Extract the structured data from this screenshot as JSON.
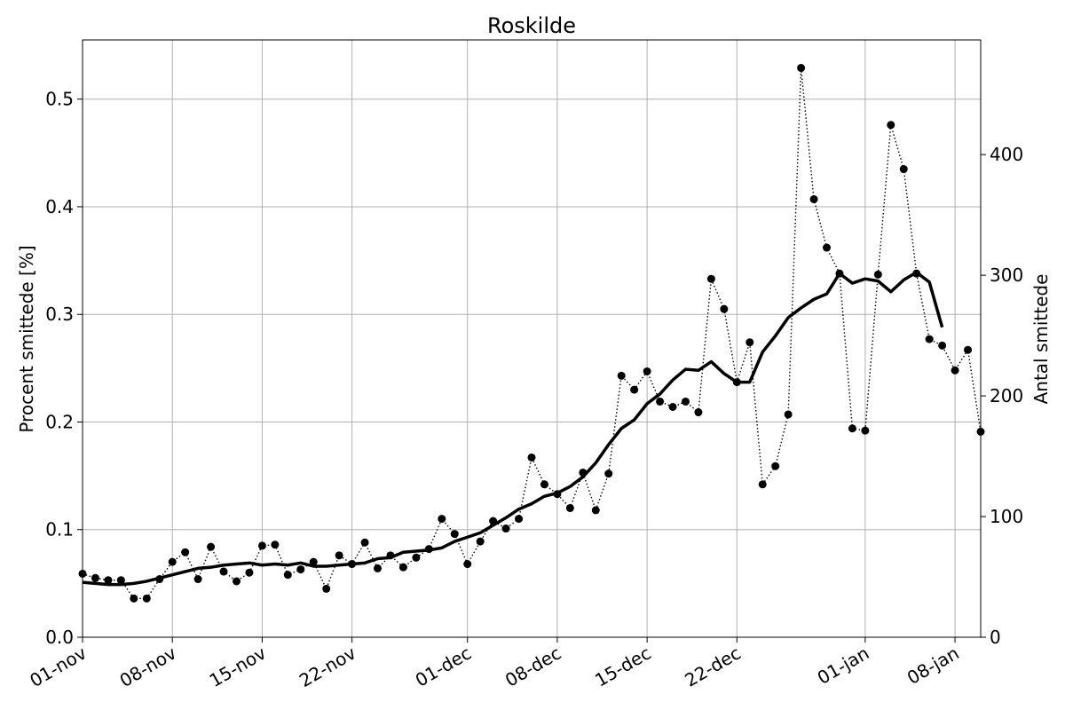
{
  "chart_data": {
    "type": "line",
    "title": "Roskilde",
    "ylabel": "Procent smittede [%]",
    "ylabel_right": "Antal smittede",
    "grid": true,
    "ylim": [
      0,
      0.555
    ],
    "ylim_right": [
      0,
      495
    ],
    "xlim": [
      "2020-11-01",
      "2021-01-10"
    ],
    "x_ticks": [
      {
        "date": "2020-11-01",
        "label": "01-nov"
      },
      {
        "date": "2020-11-08",
        "label": "08-nov"
      },
      {
        "date": "2020-11-15",
        "label": "15-nov"
      },
      {
        "date": "2020-11-22",
        "label": "22-nov"
      },
      {
        "date": "2020-12-01",
        "label": "01-dec"
      },
      {
        "date": "2020-12-08",
        "label": "08-dec"
      },
      {
        "date": "2020-12-15",
        "label": "15-dec"
      },
      {
        "date": "2020-12-22",
        "label": "22-dec"
      },
      {
        "date": "2021-01-01",
        "label": "01-jan"
      },
      {
        "date": "2021-01-08",
        "label": "08-jan"
      }
    ],
    "y_ticks_left": [
      "0.0",
      "0.1",
      "0.2",
      "0.3",
      "0.4",
      "0.5"
    ],
    "y_ticks_right": [
      "0",
      "100",
      "200",
      "300",
      "400"
    ],
    "series": [
      {
        "style": "dotted-markers",
        "start_date": "2020-11-01",
        "values": [
          0.059,
          0.055,
          0.053,
          0.053,
          0.036,
          0.036,
          0.054,
          0.07,
          0.079,
          0.054,
          0.084,
          0.061,
          0.052,
          0.06,
          0.085,
          0.086,
          0.058,
          0.063,
          0.07,
          0.045,
          0.076,
          0.068,
          0.088,
          0.064,
          0.076,
          0.065,
          0.074,
          0.082,
          0.11,
          0.096,
          0.068,
          0.089,
          0.108,
          0.101,
          0.11,
          0.167,
          0.142,
          0.133,
          0.12,
          0.153,
          0.118,
          0.152,
          0.243,
          0.23,
          0.247,
          0.219,
          0.214,
          0.219,
          0.209,
          0.333,
          0.305,
          0.237,
          0.274,
          0.142,
          0.159,
          0.207,
          0.529,
          0.407,
          0.362,
          0.338,
          0.194,
          0.192,
          0.337,
          0.476,
          0.435,
          0.338,
          0.277,
          0.271,
          0.248,
          0.267,
          0.191
        ]
      },
      {
        "style": "solid-thick",
        "start_date": "2020-11-01",
        "values": [
          0.051,
          0.05,
          0.049,
          0.049,
          0.05,
          0.052,
          0.055,
          0.058,
          0.061,
          0.064,
          0.065,
          0.067,
          0.068,
          0.069,
          0.067,
          0.068,
          0.067,
          0.069,
          0.066,
          0.066,
          0.067,
          0.068,
          0.069,
          0.073,
          0.074,
          0.079,
          0.08,
          0.081,
          0.083,
          0.089,
          0.093,
          0.097,
          0.104,
          0.111,
          0.119,
          0.124,
          0.131,
          0.134,
          0.14,
          0.149,
          0.162,
          0.179,
          0.194,
          0.202,
          0.217,
          0.226,
          0.239,
          0.249,
          0.248,
          0.256,
          0.245,
          0.237,
          0.237,
          0.265,
          0.28,
          0.297,
          0.306,
          0.314,
          0.319,
          0.338,
          0.329,
          0.333,
          0.331,
          0.321,
          0.332,
          0.339,
          0.33,
          0.288
        ]
      }
    ]
  }
}
